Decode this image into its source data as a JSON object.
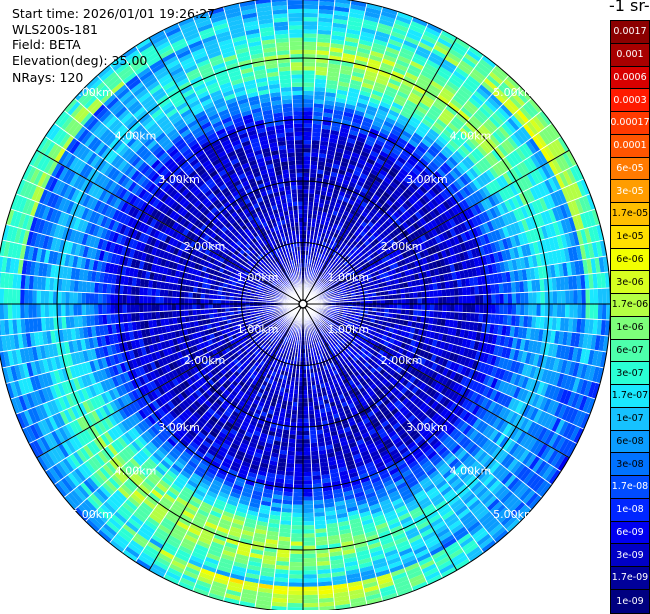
{
  "info": {
    "start_time": "Start time: 2026/01/01 19:26:27",
    "instrument": "WLS200s-181",
    "field": "Field: BETA",
    "elevation": "Elevation(deg): 35.00",
    "nrays": "NRays: 120"
  },
  "colorbar": {
    "unit_label": "-1 sr-",
    "ticks": [
      {
        "label": "0.0017",
        "bg": "#8b0000",
        "fg": "#ffffff"
      },
      {
        "label": "0.001",
        "bg": "#a80000",
        "fg": "#ffffff"
      },
      {
        "label": "0.0006",
        "bg": "#d80000",
        "fg": "#ffffff"
      },
      {
        "label": "0.0003",
        "bg": "#ff1a00",
        "fg": "#ffffff"
      },
      {
        "label": "0.00017",
        "bg": "#ff3a00",
        "fg": "#ffffff"
      },
      {
        "label": "0.0001",
        "bg": "#ff5500",
        "fg": "#ffffff"
      },
      {
        "label": "6e-05",
        "bg": "#ff7a00",
        "fg": "#ffffff"
      },
      {
        "label": "3e-05",
        "bg": "#ff9d00",
        "fg": "#ffffff"
      },
      {
        "label": "1.7e-05",
        "bg": "#ffbf00",
        "fg": "#000000"
      },
      {
        "label": "1e-05",
        "bg": "#ffe000",
        "fg": "#000000"
      },
      {
        "label": "6e-06",
        "bg": "#f2ff00",
        "fg": "#000000"
      },
      {
        "label": "3e-06",
        "bg": "#d7ff20",
        "fg": "#000000"
      },
      {
        "label": "1.7e-06",
        "bg": "#b4ff44",
        "fg": "#000000"
      },
      {
        "label": "1e-06",
        "bg": "#7dff7a",
        "fg": "#000000"
      },
      {
        "label": "6e-07",
        "bg": "#4dffab",
        "fg": "#000000"
      },
      {
        "label": "3e-07",
        "bg": "#2affd5",
        "fg": "#000000"
      },
      {
        "label": "1.7e-07",
        "bg": "#1ae8ff",
        "fg": "#000000"
      },
      {
        "label": "1e-07",
        "bg": "#16c2ff",
        "fg": "#000000"
      },
      {
        "label": "6e-08",
        "bg": "#0b9cff",
        "fg": "#000000"
      },
      {
        "label": "3e-08",
        "bg": "#0072ff",
        "fg": "#000000"
      },
      {
        "label": "1.7e-08",
        "bg": "#004cff",
        "fg": "#ffffff"
      },
      {
        "label": "1e-08",
        "bg": "#0026ff",
        "fg": "#ffffff"
      },
      {
        "label": "6e-09",
        "bg": "#0000f0",
        "fg": "#ffffff"
      },
      {
        "label": "3e-09",
        "bg": "#0000c6",
        "fg": "#ffffff"
      },
      {
        "label": "1.7e-09",
        "bg": "#00009a",
        "fg": "#ffffff"
      },
      {
        "label": "1e-09",
        "bg": "#000080",
        "fg": "#ffffff"
      }
    ]
  },
  "ppi": {
    "range_rings_km": [
      1,
      2,
      3,
      4,
      5
    ],
    "range_labels": [
      "1.00km",
      "2.00km",
      "3.00km",
      "4.00km",
      "5.00km"
    ],
    "spoke_angles_deg": [
      0,
      30,
      60,
      90,
      120,
      150,
      180,
      210,
      240,
      270,
      300,
      330
    ],
    "label_angles_deg": [
      45,
      135,
      225,
      315
    ],
    "label_angles_close_deg": [
      60,
      120,
      240,
      300
    ],
    "nrays": 120,
    "ngates": 75,
    "colors": {
      "ring": "#000000",
      "ray_separator": "#ffffff"
    }
  }
}
